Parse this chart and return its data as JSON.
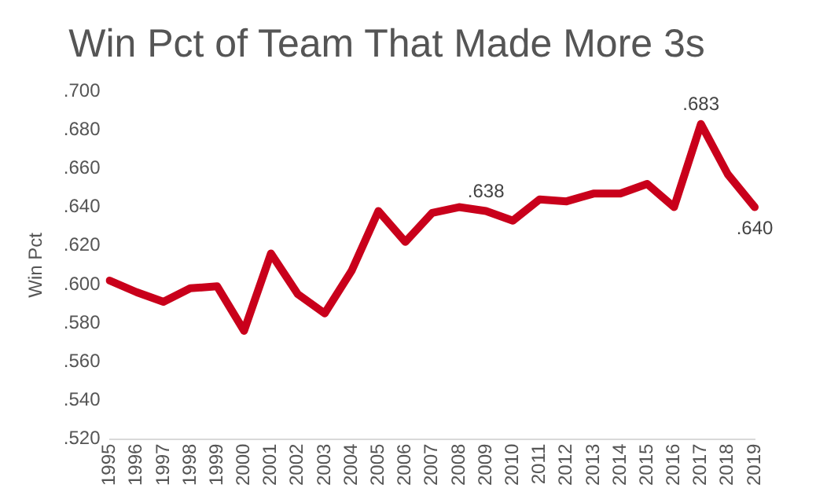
{
  "chart_data": {
    "type": "line",
    "title": "Win Pct of Team That Made More 3s",
    "ylabel": "Win Pct",
    "categories": [
      "1995",
      "1996",
      "1997",
      "1998",
      "1999",
      "2000",
      "2001",
      "2002",
      "2003",
      "2004",
      "2005",
      "2006",
      "2007",
      "2008",
      "2009",
      "2010",
      "2011",
      "2012",
      "2013",
      "2014",
      "2015",
      "2016",
      "2017",
      "2018",
      "2019"
    ],
    "series": [
      {
        "color": "#c9001b",
        "values": [
          0.602,
          0.596,
          0.591,
          0.598,
          0.599,
          0.576,
          0.616,
          0.595,
          0.585,
          0.607,
          0.638,
          0.622,
          0.637,
          0.64,
          0.638,
          0.633,
          0.644,
          0.643,
          0.647,
          0.647,
          0.652,
          0.64,
          0.683,
          0.657,
          0.64
        ],
        "value_labels": [
          null,
          null,
          null,
          null,
          null,
          null,
          null,
          null,
          null,
          null,
          null,
          null,
          null,
          null,
          ".638",
          null,
          null,
          null,
          null,
          null,
          null,
          null,
          ".683",
          null,
          ".640"
        ]
      }
    ],
    "ylim": [
      0.52,
      0.7
    ],
    "yticks": [
      {
        "value": 0.52,
        "label": ".520"
      },
      {
        "value": 0.54,
        "label": ".540"
      },
      {
        "value": 0.56,
        "label": ".560"
      },
      {
        "value": 0.58,
        "label": ".580"
      },
      {
        "value": 0.6,
        "label": ".600"
      },
      {
        "value": 0.62,
        "label": ".620"
      },
      {
        "value": 0.64,
        "label": ".640"
      },
      {
        "value": 0.66,
        "label": ".660"
      },
      {
        "value": 0.68,
        "label": ".680"
      },
      {
        "value": 0.7,
        "label": ".700"
      }
    ],
    "grid": false,
    "legend": false,
    "marker": "none",
    "line_style": "solid"
  }
}
